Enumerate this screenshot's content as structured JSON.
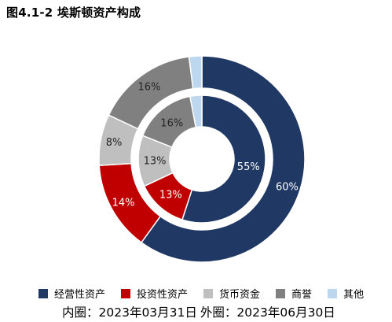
{
  "title": "图4.1-2 埃斯顿资产构成",
  "caption": {
    "inner": "内圈：2023年03月31日",
    "outer": "外圈：2023年06月30日"
  },
  "colors": [
    "#1f3864",
    "#c00000",
    "#bfbfbf",
    "#808080",
    "#bdd7ee"
  ],
  "chart_data": {
    "type": "pie",
    "donut": true,
    "categories": [
      "经营性资产",
      "投资性资产",
      "货币资金",
      "商誉",
      "其他"
    ],
    "series": [
      {
        "name": "外圈：2023年06月30日",
        "ring": "outer",
        "values": [
          60,
          14,
          8,
          16,
          2
        ],
        "labels": [
          "60%",
          "14%",
          "8%",
          "16%",
          ""
        ]
      },
      {
        "name": "内圈：2023年03月31日",
        "ring": "inner",
        "values": [
          55,
          13,
          13,
          16,
          3
        ],
        "labels": [
          "55%",
          "13%",
          "13%",
          "16%",
          ""
        ]
      }
    ],
    "legend_position": "bottom",
    "title": "图4.1-2 埃斯顿资产构成"
  }
}
